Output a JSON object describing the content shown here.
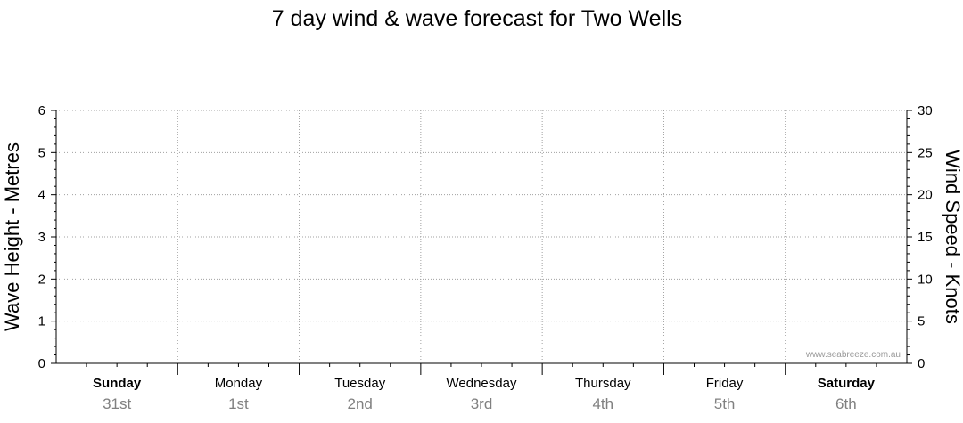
{
  "chart_data": {
    "type": "line",
    "title": "7 day wind & wave forecast for Two Wells",
    "y_left": {
      "label": "Wave Height - Metres",
      "range": [
        0,
        6
      ],
      "ticks": [
        "0",
        "1",
        "2",
        "3",
        "4",
        "5",
        "6"
      ]
    },
    "y_right": {
      "label": "Wind Speed - Knots",
      "range": [
        0,
        30
      ],
      "ticks": [
        "0",
        "5",
        "10",
        "15",
        "20",
        "25",
        "30"
      ]
    },
    "days": [
      {
        "name": "Sunday",
        "date": "31st",
        "bold": true
      },
      {
        "name": "Monday",
        "date": "1st",
        "bold": false
      },
      {
        "name": "Tuesday",
        "date": "2nd",
        "bold": false
      },
      {
        "name": "Wednesday",
        "date": "3rd",
        "bold": false
      },
      {
        "name": "Thursday",
        "date": "4th",
        "bold": false
      },
      {
        "name": "Friday",
        "date": "5th",
        "bold": false
      },
      {
        "name": "Saturday",
        "date": "6th",
        "bold": true
      }
    ],
    "series": [],
    "grid": true,
    "watermark": "www.seabreeze.com.au",
    "colors": {
      "axis": "#000000",
      "grid": "#a0a0a0",
      "date_text": "#808080",
      "watermark_text": "#999999"
    }
  }
}
